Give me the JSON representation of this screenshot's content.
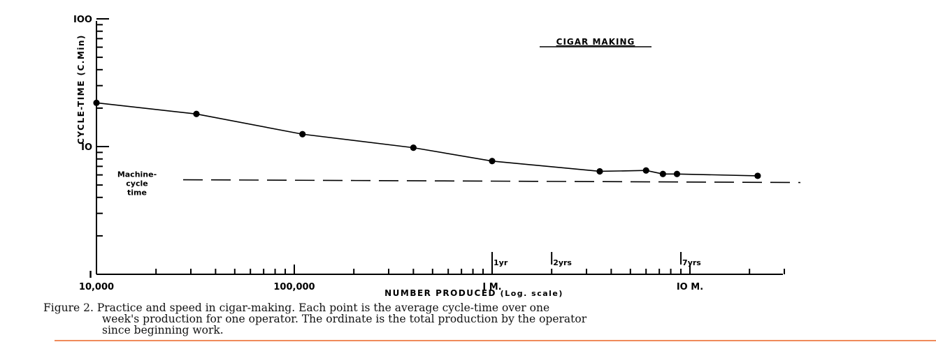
{
  "chart_data": {
    "type": "line",
    "title": "CIGAR MAKING",
    "xlabel": "NUMBER PRODUCED",
    "xlabel_note": "(Log. scale)",
    "ylabel": "CYCLE-TIME (C.Min)",
    "x_scale": "log",
    "y_scale": "log",
    "xlim": [
      10000,
      30000000
    ],
    "ylim": [
      1,
      100
    ],
    "x_tick_labels": [
      {
        "value": 10000,
        "label": "10,000"
      },
      {
        "value": 100000,
        "label": "100,000"
      },
      {
        "value": 1000000,
        "label": "I M."
      },
      {
        "value": 10000000,
        "label": "IO M."
      }
    ],
    "y_tick_labels": [
      {
        "value": 1,
        "label": "I"
      },
      {
        "value": 10,
        "label": "IO"
      },
      {
        "value": 100,
        "label": "IOO"
      }
    ],
    "series": [
      {
        "x": [
          10000,
          32000,
          110000,
          400000,
          1000000,
          3500000,
          6000000,
          7300000,
          8600000,
          22000000
        ],
        "y": [
          22,
          18,
          12.5,
          9.8,
          7.7,
          6.4,
          6.5,
          6.1,
          6.1,
          5.9
        ]
      }
    ],
    "reference_line": {
      "label_lines": [
        "Machine-",
        "cycle",
        "time"
      ],
      "y": 5.5
    },
    "annotations": [
      {
        "label": "1yr",
        "x": 1000000
      },
      {
        "label": "2yrs",
        "x": 2000000
      },
      {
        "label": "7yrs",
        "x": 9000000
      }
    ]
  },
  "caption": {
    "lines": [
      "Figure 2.   Practice and speed in cigar-making.   Each point is the average cycle-time over one",
      "week's production for one operator.   The ordinate is the total production by the operator",
      "since beginning work."
    ]
  },
  "colors": {
    "ink": "#000000",
    "bottom_rule": "#f08a5a"
  }
}
